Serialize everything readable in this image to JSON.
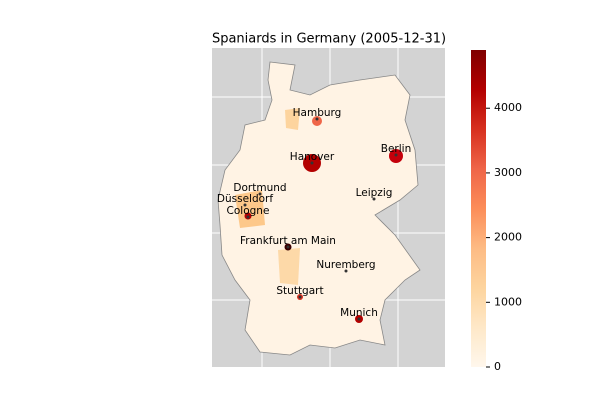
{
  "title": "Spaniards in Germany (2005-12-31)",
  "cities": [
    "Hamburg",
    "Hanover",
    "Berlin",
    "Dortmund",
    "Düsseldorf",
    "Cologne",
    "Leipzig",
    "Frankfurt am Main",
    "Nuremberg",
    "Stuttgart",
    "Munich"
  ],
  "colorbar": {
    "clim": [
      0,
      4900
    ],
    "ticks": [
      0,
      1000,
      2000,
      3000,
      4000
    ],
    "colors": [
      "#fff7ec",
      "#fee8c8",
      "#fdd49e",
      "#fdbb84",
      "#fc8d59",
      "#ef6548",
      "#d7301f",
      "#b30000",
      "#7f0000"
    ]
  }
}
